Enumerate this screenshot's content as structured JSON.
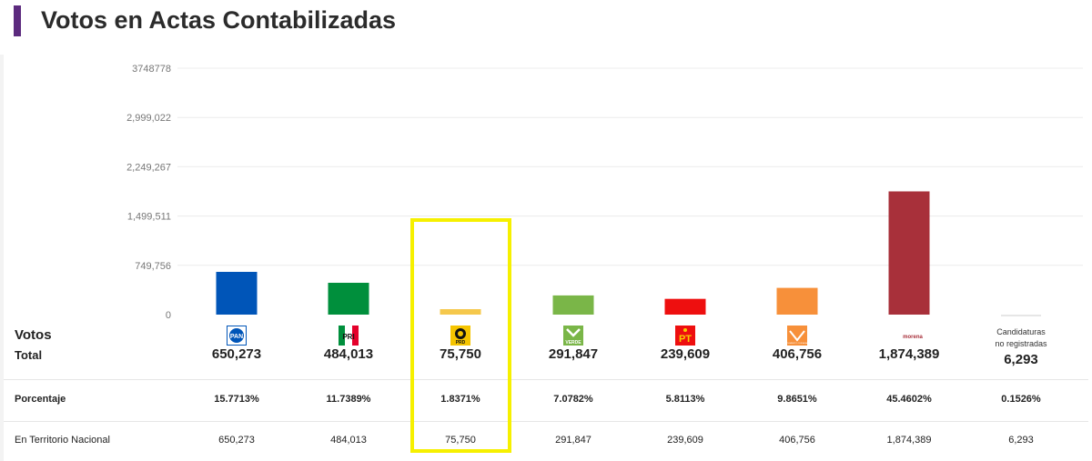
{
  "title": "Votos en Actas Contabilizadas",
  "colors": {
    "title_bar": "#5c2a7e",
    "highlight": "#f6f000"
  },
  "rows": {
    "votos": "Votos",
    "total": "Total",
    "porcentaje": "Porcentaje",
    "territorio": "En Territorio Nacional"
  },
  "chart_data": {
    "type": "bar",
    "title": "Votos en Actas Contabilizadas",
    "categories": [
      "PAN",
      "PRI",
      "PRD",
      "VERDE",
      "PT",
      "MOVIMIENTO CIUDADANO",
      "morena",
      "Candidaturas no registradas"
    ],
    "values": [
      650273,
      484013,
      75750,
      291847,
      239609,
      406756,
      1874389,
      6293
    ],
    "colors": [
      "#0055b8",
      "#008f3c",
      "#f5c84c",
      "#7ab648",
      "#ee0f0f",
      "#f7903a",
      "#a8303a",
      "#cccccc"
    ],
    "ylim": [
      0,
      3748778
    ],
    "yticks": [
      0,
      749756,
      1499511,
      2249267,
      2999022,
      3748778
    ],
    "ytick_labels": [
      "0",
      "749,756",
      "1,499,511",
      "2,249,267",
      "2,999,022",
      "3748778"
    ],
    "grid": true,
    "highlighted_category": "PRD"
  },
  "parties": [
    {
      "logo": "pan-logo",
      "logo_text": "PAN",
      "total": "650,273",
      "pct": "15.7713%",
      "territorio": "650,273"
    },
    {
      "logo": "pri-logo",
      "logo_text": "PRI",
      "total": "484,013",
      "pct": "11.7389%",
      "territorio": "484,013"
    },
    {
      "logo": "prd-logo",
      "logo_text": "PRD",
      "total": "75,750",
      "pct": "1.8371%",
      "territorio": "75,750"
    },
    {
      "logo": "verde-logo",
      "logo_text": "VERDE",
      "total": "291,847",
      "pct": "7.0782%",
      "territorio": "291,847"
    },
    {
      "logo": "pt-logo",
      "logo_text": "PT",
      "total": "239,609",
      "pct": "5.8113%",
      "territorio": "239,609"
    },
    {
      "logo": "mc-logo",
      "logo_text": "MOVIMIENTO CIUDADANO",
      "total": "406,756",
      "pct": "9.8651%",
      "territorio": "406,756"
    },
    {
      "logo": "morena-logo",
      "logo_text": "morena",
      "total": "1,874,389",
      "pct": "45.4602%",
      "territorio": "1,874,389"
    },
    {
      "logo": "",
      "logo_text": "",
      "total": "6,293",
      "pct": "0.1526%",
      "territorio": "6,293",
      "note_line1": "Candidaturas",
      "note_line2": "no registradas"
    }
  ]
}
